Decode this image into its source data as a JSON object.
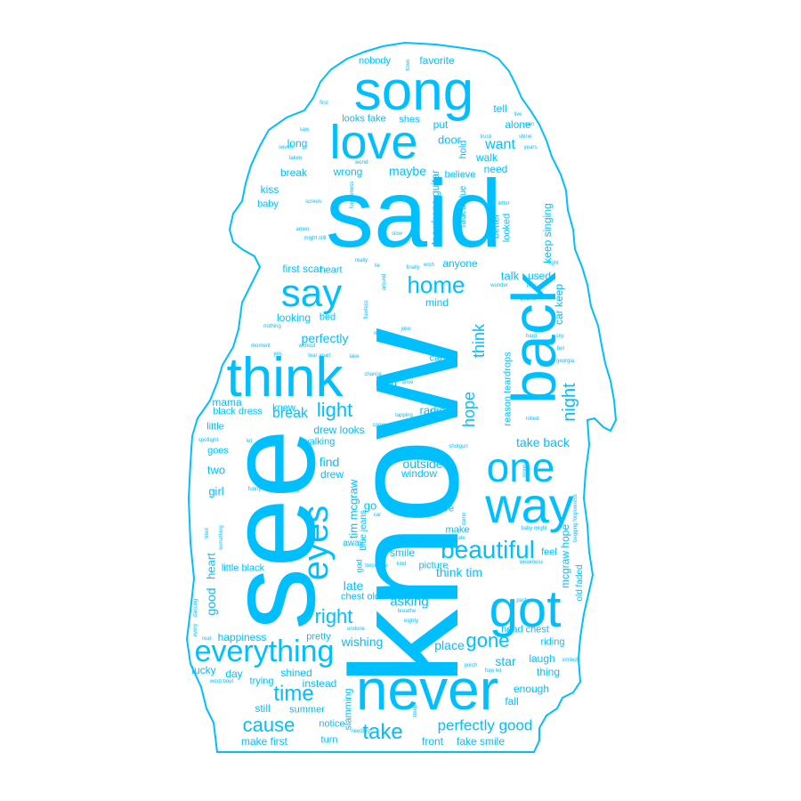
{
  "colors": {
    "word": "#00BFFF",
    "outline": "#00BFFF",
    "background": "#FFFFFF"
  },
  "words": [
    {
      "t": "know",
      "v": 1
    },
    {
      "t": "said",
      "v": 0
    },
    {
      "t": "see",
      "v": 1
    },
    {
      "t": "never",
      "v": 0
    },
    {
      "t": "song",
      "v": 0
    },
    {
      "t": "back",
      "v": 1
    },
    {
      "t": "got",
      "v": 0
    },
    {
      "t": "think",
      "v": 0
    },
    {
      "t": "love",
      "v": 0
    },
    {
      "t": "way",
      "v": 0
    },
    {
      "t": "one",
      "v": 0
    },
    {
      "t": "eyes",
      "v": 1
    },
    {
      "t": "say",
      "v": 0
    },
    {
      "t": "everything",
      "v": 0
    },
    {
      "t": "beautiful",
      "v": 0
    },
    {
      "t": "home",
      "v": 0
    },
    {
      "t": "right",
      "v": 0
    },
    {
      "t": "time",
      "v": 0
    },
    {
      "t": "cause",
      "v": 0
    },
    {
      "t": "take",
      "v": 0
    },
    {
      "t": "gone",
      "v": 0
    },
    {
      "t": "light",
      "v": 0
    },
    {
      "t": "night",
      "v": 1
    },
    {
      "t": "hope",
      "v": 1
    },
    {
      "t": "think",
      "v": 1
    },
    {
      "t": "perfectly good",
      "v": 0
    },
    {
      "t": "break",
      "v": 0
    },
    {
      "t": "perfectly",
      "v": 0
    },
    {
      "t": "take back",
      "v": 0
    },
    {
      "t": "heart",
      "v": 1
    },
    {
      "t": "good",
      "v": 1
    },
    {
      "t": "mama",
      "v": 0
    },
    {
      "t": "star",
      "v": 0
    },
    {
      "t": "want",
      "v": 0
    },
    {
      "t": "walk",
      "v": 0
    },
    {
      "t": "need",
      "v": 0
    },
    {
      "t": "even",
      "v": 0
    },
    {
      "t": "outside",
      "v": 0
    },
    {
      "t": "window",
      "v": 0
    },
    {
      "t": "asking",
      "v": 0
    },
    {
      "t": "late",
      "v": 0
    },
    {
      "t": "wishing",
      "v": 0
    },
    {
      "t": "shined",
      "v": 0
    },
    {
      "t": "instead",
      "v": 0
    },
    {
      "t": "summer",
      "v": 0
    },
    {
      "t": "notice",
      "v": 0
    },
    {
      "t": "turn",
      "v": 0
    },
    {
      "t": "slamming",
      "v": 1
    },
    {
      "t": "front",
      "v": 0
    },
    {
      "t": "fake smile",
      "v": 0
    },
    {
      "t": "make first",
      "v": 0
    },
    {
      "t": "still",
      "v": 0
    },
    {
      "t": "trying",
      "v": 0
    },
    {
      "t": "day",
      "v": 0
    },
    {
      "t": "lucky",
      "v": 0
    },
    {
      "t": "happiness",
      "v": 0
    },
    {
      "t": "pretty",
      "v": 0
    },
    {
      "t": "head chest",
      "v": 0
    },
    {
      "t": "riding",
      "v": 0
    },
    {
      "t": "laugh",
      "v": 0
    },
    {
      "t": "thing",
      "v": 0
    },
    {
      "t": "enough",
      "v": 0
    },
    {
      "t": "fall",
      "v": 0
    },
    {
      "t": "place",
      "v": 0
    },
    {
      "t": "smile",
      "v": 0
    },
    {
      "t": "picture",
      "v": 0
    },
    {
      "t": "think tim",
      "v": 0
    },
    {
      "t": "feel",
      "v": 0
    },
    {
      "t": "mcgraw hope",
      "v": 1
    },
    {
      "t": "old faded",
      "v": 1
    },
    {
      "t": "go",
      "v": 0
    },
    {
      "t": "give",
      "v": 0
    },
    {
      "t": "make",
      "v": 0
    },
    {
      "t": "away",
      "v": 0
    },
    {
      "t": "tim mcgraw",
      "v": 1
    },
    {
      "t": "blue jeans",
      "v": 1
    },
    {
      "t": "find",
      "v": 0
    },
    {
      "t": "drew",
      "v": 0
    },
    {
      "t": "walking",
      "v": 0
    },
    {
      "t": "drew looks",
      "v": 0
    },
    {
      "t": "knew",
      "v": 0
    },
    {
      "t": "radio",
      "v": 0
    },
    {
      "t": "read",
      "v": 0
    },
    {
      "t": "cant",
      "v": 0
    },
    {
      "t": "reason teardrops",
      "v": 1
    },
    {
      "t": "car keep",
      "v": 1
    },
    {
      "t": "used",
      "v": 0
    },
    {
      "t": "talk",
      "v": 0
    },
    {
      "t": "anyone",
      "v": 0
    },
    {
      "t": "mind",
      "v": 0
    },
    {
      "t": "bed",
      "v": 0
    },
    {
      "t": "looking",
      "v": 0
    },
    {
      "t": "heart",
      "v": 0
    },
    {
      "t": "first scar",
      "v": 0
    },
    {
      "t": "keep singing",
      "v": 1
    },
    {
      "t": "better",
      "v": 1
    },
    {
      "t": "looked",
      "v": 1
    },
    {
      "t": "teardrops guitar",
      "v": 1
    },
    {
      "t": "faded blue",
      "v": 1
    },
    {
      "t": "hold",
      "v": 1
    },
    {
      "t": "believe",
      "v": 0
    },
    {
      "t": "maybe",
      "v": 0
    },
    {
      "t": "wrong",
      "v": 0
    },
    {
      "t": "break",
      "v": 0
    },
    {
      "t": "long",
      "v": 0
    },
    {
      "t": "door",
      "v": 0
    },
    {
      "t": "put",
      "v": 0
    },
    {
      "t": "looks fake",
      "v": 0
    },
    {
      "t": "shes",
      "v": 0
    },
    {
      "t": "tell",
      "v": 0
    },
    {
      "t": "alone",
      "v": 0
    },
    {
      "t": "nobody",
      "v": 0
    },
    {
      "t": "favorite",
      "v": 0
    },
    {
      "t": "kiss",
      "v": 0
    },
    {
      "t": "baby",
      "v": 0
    },
    {
      "t": "little",
      "v": 0
    },
    {
      "t": "black dress",
      "v": 0
    },
    {
      "t": "goes",
      "v": 0
    },
    {
      "t": "two",
      "v": 0
    },
    {
      "t": "girl",
      "v": 0
    },
    {
      "t": "little black",
      "v": 0
    },
    {
      "t": "chest old",
      "v": 0
    },
    {
      "t": "god",
      "v": 1
    },
    {
      "t": "town",
      "v": 1
    },
    {
      "t": "first",
      "v": 0
    },
    {
      "t": "saw",
      "v": 0
    },
    {
      "t": "seven",
      "v": 0
    },
    {
      "t": "taken",
      "v": 0
    },
    {
      "t": "world",
      "v": 0
    },
    {
      "t": "truck",
      "v": 0
    },
    {
      "t": "shine",
      "v": 0
    },
    {
      "t": "years",
      "v": 0
    },
    {
      "t": "live",
      "v": 0
    },
    {
      "t": "rain",
      "v": 0
    },
    {
      "t": "screen",
      "v": 0
    },
    {
      "t": "forgiveness",
      "v": 1
    },
    {
      "t": "letter",
      "v": 0
    },
    {
      "t": "amen",
      "v": 0
    },
    {
      "t": "might still",
      "v": 0
    },
    {
      "t": "slow",
      "v": 0
    },
    {
      "t": "really",
      "v": 0
    },
    {
      "t": "lie",
      "v": 0
    },
    {
      "t": "finally",
      "v": 0
    },
    {
      "t": "wish",
      "v": 0
    },
    {
      "t": "fight",
      "v": 0
    },
    {
      "t": "wonder",
      "v": 0
    },
    {
      "t": "play",
      "v": 0
    },
    {
      "t": "phone",
      "v": 0
    },
    {
      "t": "around",
      "v": 1
    },
    {
      "t": "flawless",
      "v": 1
    },
    {
      "t": "nothing",
      "v": 0
    },
    {
      "t": "man",
      "v": 0
    },
    {
      "t": "joke",
      "v": 0
    },
    {
      "t": "hard",
      "v": 0
    },
    {
      "t": "sky",
      "v": 0
    },
    {
      "t": "bet",
      "v": 0
    },
    {
      "t": "moment",
      "v": 0
    },
    {
      "t": "without",
      "v": 0
    },
    {
      "t": "yes",
      "v": 0
    },
    {
      "t": "tear apart",
      "v": 0
    },
    {
      "t": "lake",
      "v": 0
    },
    {
      "t": "georgia",
      "v": 0
    },
    {
      "t": "chance",
      "v": 0
    },
    {
      "t": "drive",
      "v": 0
    },
    {
      "t": "worth",
      "v": 0
    },
    {
      "t": "hair",
      "v": 0
    },
    {
      "t": "tapping",
      "v": 0
    },
    {
      "t": "come",
      "v": 0
    },
    {
      "t": "rolled",
      "v": 0
    },
    {
      "t": "spotlight",
      "v": 0
    },
    {
      "t": "let",
      "v": 0
    },
    {
      "t": "shame",
      "v": 1
    },
    {
      "t": "shotgun",
      "v": 0
    },
    {
      "t": "moon",
      "v": 1
    },
    {
      "t": "funny",
      "v": 0
    },
    {
      "t": "us",
      "v": 0
    },
    {
      "t": "seat",
      "v": 0
    },
    {
      "t": "nine",
      "v": 0
    },
    {
      "t": "thought twice",
      "v": 0
    },
    {
      "t": "damn",
      "v": 1
    },
    {
      "t": "begging forgiveness",
      "v": 1
    },
    {
      "t": "car",
      "v": 0
    },
    {
      "t": "baby might",
      "v": 0
    },
    {
      "t": "tried",
      "v": 1
    },
    {
      "t": "something",
      "v": 1
    },
    {
      "t": "date",
      "v": 0
    },
    {
      "t": "twice fore",
      "v": 0
    },
    {
      "t": "kind",
      "v": 0
    },
    {
      "t": "weakness",
      "v": 0
    },
    {
      "t": "daddies",
      "v": 0
    },
    {
      "t": "dancing",
      "v": 1
    },
    {
      "t": "tonight",
      "v": 1
    },
    {
      "t": "breathe",
      "v": 0
    },
    {
      "t": "past",
      "v": 0
    },
    {
      "t": "eighty",
      "v": 0
    },
    {
      "t": "every",
      "v": 1
    },
    {
      "t": "real",
      "v": 0
    },
    {
      "t": "undone",
      "v": 0
    },
    {
      "t": "porch",
      "v": 0
    },
    {
      "t": "fore let",
      "v": 0
    },
    {
      "t": "smiled",
      "v": 0
    },
    {
      "t": "word bout",
      "v": 0
    },
    {
      "t": "steep",
      "v": 1
    },
    {
      "t": "needing",
      "v": 0
    }
  ]
}
